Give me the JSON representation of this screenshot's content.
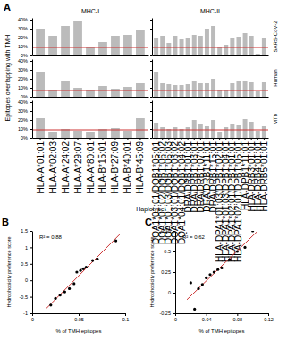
{
  "chart_data": [
    {
      "type": "bar",
      "title": "MHC-I",
      "panel_label": "A",
      "values": [
        0.3,
        0.22,
        0.33,
        0.38,
        0.1,
        0.15,
        0.22,
        0.23,
        0.28
      ],
      "color": "#BBBBBB",
      "ylim": [
        0,
        0.42
      ],
      "yticks": [
        {
          "value": 0,
          "label": "0%"
        },
        {
          "value": 0.1,
          "label": "10%"
        },
        {
          "value": 0.2,
          "label": "20%"
        },
        {
          "value": 0.3,
          "label": "30%"
        },
        {
          "value": 0.4,
          "label": "40%"
        }
      ],
      "hlines": [
        {
          "value": 0.09,
          "color": "#CC3333"
        }
      ],
      "tick_labels": "y"
    },
    {
      "type": "bar",
      "title": "MHC-II",
      "row_label": "SARS-CoV-2",
      "values": [
        0.2,
        0.22,
        0.14,
        0.22,
        0.18,
        0.19,
        0.23,
        0.22,
        0.3,
        0.33,
        0.1,
        0.12,
        0.2,
        0.21,
        0.25,
        0.22,
        0.02,
        0.2
      ],
      "color": "#BBBBBB",
      "ylim": [
        0,
        0.42
      ],
      "yticks": [
        0,
        0.1,
        0.2,
        0.3,
        0.4
      ],
      "hlines": [
        {
          "value": 0.09,
          "color": "#CC3333"
        }
      ],
      "tick_labels": false
    },
    {
      "type": "bar",
      "y_label": "Epitopes overlapping with TMH",
      "values": [
        0.28,
        0.07,
        0.18,
        0.1,
        0.08,
        0.12,
        0.09,
        0.11,
        0.15
      ],
      "color": "#BBBBBB",
      "ylim": [
        0,
        0.42
      ],
      "yticks": [
        {
          "value": 0,
          "label": "0%"
        },
        {
          "value": 0.1,
          "label": "10%"
        },
        {
          "value": 0.2,
          "label": "20%"
        },
        {
          "value": 0.3,
          "label": "30%"
        },
        {
          "value": 0.4,
          "label": "40%"
        }
      ],
      "hlines": [
        {
          "value": 0.07,
          "color": "#CC3333"
        }
      ],
      "tick_labels": "y"
    },
    {
      "type": "bar",
      "row_label": "Human",
      "values": [
        0.28,
        0.15,
        0.14,
        0.13,
        0.13,
        0.14,
        0.17,
        0.15,
        0.15,
        0.2,
        0.07,
        0.08,
        0.15,
        0.17,
        0.17,
        0.16,
        0.06,
        0.16
      ],
      "color": "#BBBBBB",
      "ylim": [
        0,
        0.42
      ],
      "yticks": [
        0,
        0.1,
        0.2,
        0.3,
        0.4
      ],
      "hlines": [
        {
          "value": 0.07,
          "color": "#CC3333"
        }
      ],
      "tick_labels": false
    },
    {
      "type": "bar",
      "x_label": "Haplotype",
      "categories": [
        "HLA-A*01:01",
        "HLA-A*02:03",
        "HLA-A*24:02",
        "HLA-A*29:07",
        "HLA-A*80:01",
        "HLA-B*15:01",
        "HLA-B*27:09",
        "HLA-B*40:01",
        "HLA-B*45:09"
      ],
      "values": [
        0.22,
        0.07,
        0.1,
        0.08,
        0.06,
        0.1,
        0.11,
        0.08,
        0.22
      ],
      "color": "#BBBBBB",
      "ylim": [
        0,
        0.42
      ],
      "yticks": [
        {
          "value": 0,
          "label": "0%"
        },
        {
          "value": 0.1,
          "label": "10%"
        },
        {
          "value": 0.2,
          "label": "20%"
        },
        {
          "value": 0.3,
          "label": "30%"
        },
        {
          "value": 0.4,
          "label": "40%"
        }
      ],
      "hlines": [
        {
          "value": 0.09,
          "color": "#CC3333"
        }
      ]
    },
    {
      "type": "bar",
      "row_label": "MTb",
      "categories": [
        "DQA1*01:01/DQB1*05:01",
        "DQA1*01:02/DQB1*06:02",
        "DQA1*01:03/DQB1*06:03",
        "DQA1*03:01/DQB1*03:02",
        "DQA1*04:01/DQB1*04:02",
        "DRA/DRB1*01:01",
        "DRA/DRB1*03:01",
        "DRA/DRB1*07:01",
        "DRA/DRB1*11:01",
        "DRA/DRB1*15:01",
        "HLA-DPA1*01:03/DPB1*02:01",
        "HLA-DPA1*01:03/DPB1*04:01",
        "HLA-DPA1*02:01/DPB1*01:01",
        "HLA-DPA1*02:01/DPB1*05:01",
        "HLA-DPB1*11:01",
        "HLA-DRB3*01:01",
        "HLA-DRB4*01:01",
        "HLA-DRB5*01:01"
      ],
      "values": [
        0.17,
        0.12,
        0.1,
        0.12,
        0.1,
        0.12,
        0.2,
        0.15,
        0.13,
        0.2,
        0.06,
        0.12,
        0.16,
        0.14,
        0.21,
        0.18,
        0.08,
        0.13
      ],
      "color": "#BBBBBB",
      "ylim": [
        0,
        0.42
      ],
      "yticks": [
        0,
        0.1,
        0.2,
        0.3,
        0.4
      ],
      "hlines": [
        {
          "value": 0.09,
          "color": "#CC3333"
        }
      ],
      "tick_labels": "x"
    },
    {
      "type": "scatter",
      "panel_label": "B",
      "annotation": "R² = 0.88",
      "x_label": "% of TMH epitopes",
      "y_label": "Hydrophobicity preference score",
      "series": [
        {
          "type": "scatter",
          "color": "black",
          "x": [
            0.02,
            0.025,
            0.03,
            0.035,
            0.04,
            0.045,
            0.048,
            0.052,
            0.055,
            0.058,
            0.065,
            0.07,
            0.09
          ],
          "values": [
            -0.75,
            -0.55,
            -0.45,
            -0.35,
            -0.25,
            -0.1,
            0.25,
            0.3,
            0.35,
            0.4,
            0.6,
            0.65,
            1.2
          ]
        },
        {
          "type": "line",
          "color": "#CC3333",
          "x": [
            0.015,
            0.095
          ],
          "values": [
            -0.8593,
            1.4184
          ]
        }
      ],
      "xlim": [
        0,
        0.1
      ],
      "xticks": [
        0,
        0.05,
        0.1
      ],
      "ylim": [
        -1,
        1.5
      ],
      "yticks": [
        -1,
        -0.5,
        0,
        0.5,
        1,
        1.5
      ]
    },
    {
      "type": "scatter",
      "panel_label": "C",
      "annotation": "R² = 0.62",
      "x_label": "% of TMH epitopes",
      "y_label": "Hydrophobicity preference score",
      "series": [
        {
          "type": "scatter",
          "color": "black",
          "x": [
            0.02,
            0.025,
            0.03,
            0.035,
            0.04,
            0.045,
            0.05,
            0.055,
            0.06,
            0.07,
            0.08,
            0.09,
            0.1
          ],
          "values": [
            0.12,
            -0.2,
            0.05,
            0.1,
            0.18,
            0.22,
            0.25,
            0.28,
            0.3,
            0.4,
            0.5,
            0.55,
            0.75
          ]
        },
        {
          "type": "line",
          "color": "#CC3333",
          "x": [
            0.015,
            0.105
          ],
          "values": [
            -0.0853,
            0.7361
          ]
        }
      ],
      "xlim": [
        0,
        0.12
      ],
      "xticks": [
        0,
        0.04,
        0.08,
        0.12
      ],
      "ylim": [
        -0.25,
        0.75
      ],
      "yticks": [
        -0.25,
        0,
        0.25,
        0.5,
        0.75
      ]
    }
  ]
}
